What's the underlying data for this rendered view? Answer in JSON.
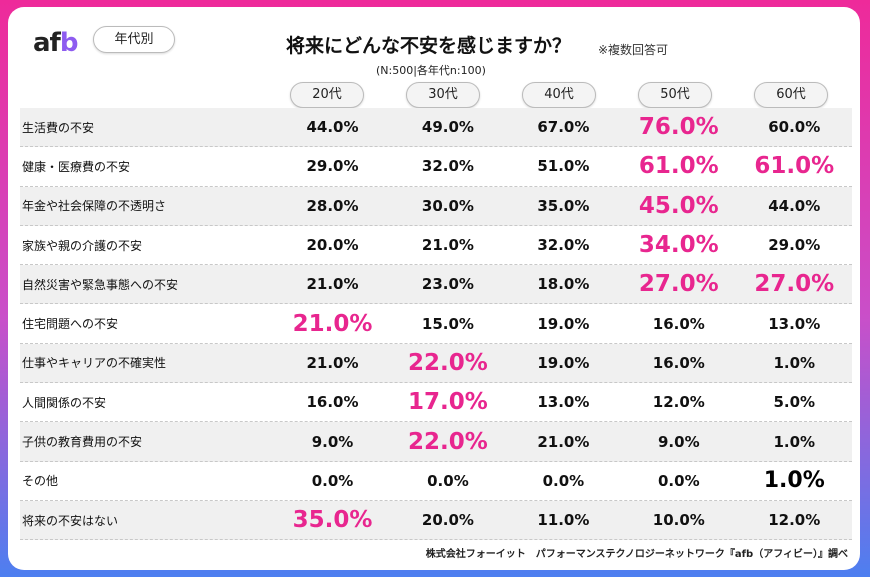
{
  "header": {
    "logo": "afb",
    "tag": "年代別",
    "title": "将来にどんな不安を感じますか？",
    "note": "※複数回答可",
    "sample": "(N:500|各年代n:100)"
  },
  "columns": [
    "20代",
    "30代",
    "40代",
    "50代",
    "60代"
  ],
  "colors": {
    "highlight": "#e8268f",
    "border_top": "#ee2a9a",
    "border_bottom": "#4d7ff0"
  },
  "rows": [
    {
      "label": "生活費の不安",
      "values": [
        "44.0%",
        "49.0%",
        "67.0%",
        "76.0%",
        "60.0%"
      ],
      "styles": [
        "n",
        "n",
        "n",
        "pink",
        "n"
      ]
    },
    {
      "label": "健康・医療費の不安",
      "values": [
        "29.0%",
        "32.0%",
        "51.0%",
        "61.0%",
        "61.0%"
      ],
      "styles": [
        "n",
        "n",
        "n",
        "pink",
        "pink"
      ]
    },
    {
      "label": "年金や社会保障の不透明さ",
      "values": [
        "28.0%",
        "30.0%",
        "35.0%",
        "45.0%",
        "44.0%"
      ],
      "styles": [
        "n",
        "n",
        "n",
        "pink",
        "n"
      ]
    },
    {
      "label": "家族や親の介護の不安",
      "values": [
        "20.0%",
        "21.0%",
        "32.0%",
        "34.0%",
        "29.0%"
      ],
      "styles": [
        "n",
        "n",
        "n",
        "pink",
        "n"
      ]
    },
    {
      "label": "自然災害や緊急事態への不安",
      "values": [
        "21.0%",
        "23.0%",
        "18.0%",
        "27.0%",
        "27.0%"
      ],
      "styles": [
        "n",
        "n",
        "n",
        "pink",
        "pink"
      ]
    },
    {
      "label": "住宅問題への不安",
      "values": [
        "21.0%",
        "15.0%",
        "19.0%",
        "16.0%",
        "13.0%"
      ],
      "styles": [
        "pink",
        "n",
        "n",
        "n",
        "n"
      ]
    },
    {
      "label": "仕事やキャリアの不確実性",
      "values": [
        "21.0%",
        "22.0%",
        "19.0%",
        "16.0%",
        "1.0%"
      ],
      "styles": [
        "n",
        "pink",
        "n",
        "n",
        "n"
      ]
    },
    {
      "label": "人間関係の不安",
      "values": [
        "16.0%",
        "17.0%",
        "13.0%",
        "12.0%",
        "5.0%"
      ],
      "styles": [
        "n",
        "pink",
        "n",
        "n",
        "n"
      ]
    },
    {
      "label": "子供の教育費用の不安",
      "values": [
        "9.0%",
        "22.0%",
        "21.0%",
        "9.0%",
        "1.0%"
      ],
      "styles": [
        "n",
        "pink",
        "n",
        "n",
        "n"
      ]
    },
    {
      "label": "その他",
      "values": [
        "0.0%",
        "0.0%",
        "0.0%",
        "0.0%",
        "1.0%"
      ],
      "styles": [
        "n",
        "n",
        "n",
        "n",
        "big"
      ]
    },
    {
      "label": "将来の不安はない",
      "values": [
        "35.0%",
        "20.0%",
        "11.0%",
        "10.0%",
        "12.0%"
      ],
      "styles": [
        "pink",
        "n",
        "n",
        "n",
        "n"
      ]
    }
  ],
  "footer": "株式会社フォーイット　パフォーマンステクノロジーネットワーク『afb（アフィビー）』調べ"
}
